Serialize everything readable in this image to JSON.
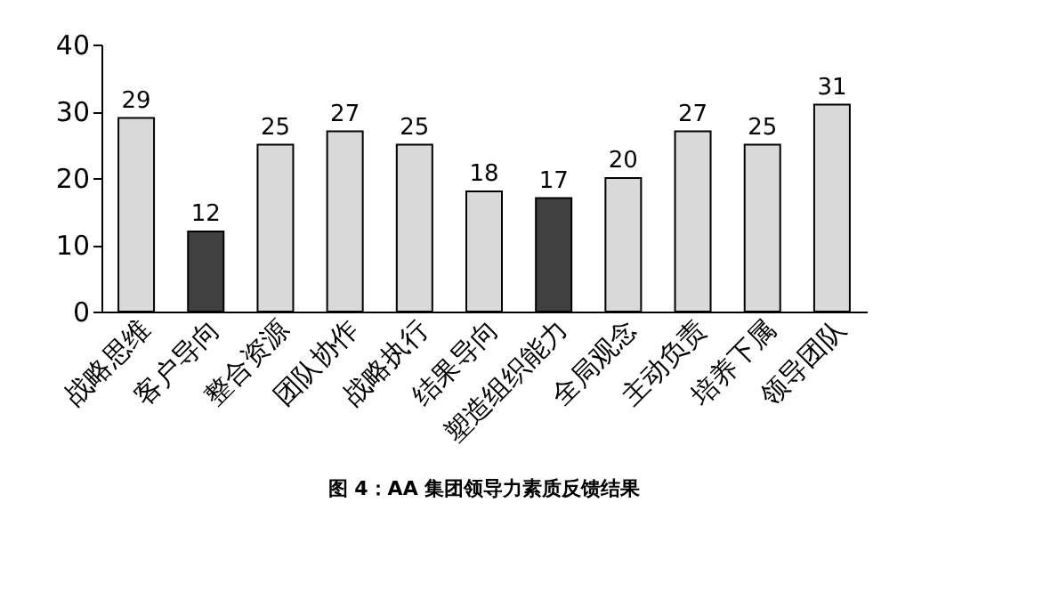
{
  "chart_data": {
    "type": "bar",
    "title": "图 4：AA 集团领导力素质反馈结果",
    "categories": [
      "战略思维",
      "客户导向",
      "整合资源",
      "团队协作",
      "战略执行",
      "结果导向",
      "塑造组织能力",
      "全局观念",
      "主动负责",
      "培养下属",
      "领导团队"
    ],
    "values": [
      29,
      12,
      25,
      27,
      25,
      18,
      17,
      20,
      27,
      25,
      31
    ],
    "colors": [
      "#d9d9d9",
      "#404040",
      "#d9d9d9",
      "#d9d9d9",
      "#d9d9d9",
      "#d9d9d9",
      "#404040",
      "#d9d9d9",
      "#d9d9d9",
      "#d9d9d9",
      "#d9d9d9"
    ],
    "ylim": [
      0,
      40
    ],
    "yticks": [
      0,
      10,
      20,
      30,
      40
    ],
    "grid": false,
    "data_labels": true
  }
}
